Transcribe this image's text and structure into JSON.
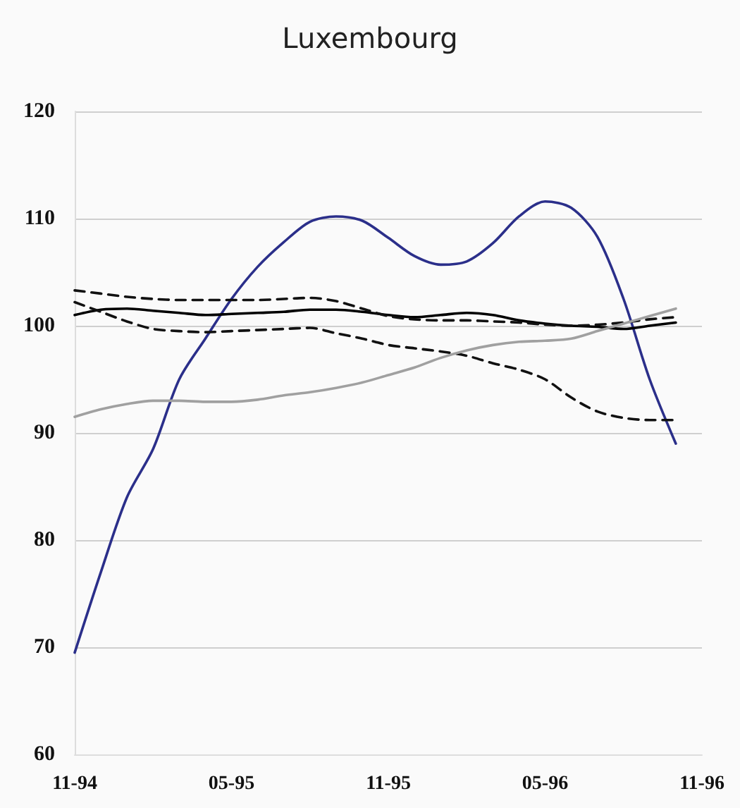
{
  "chart_data": {
    "type": "line",
    "title": "Luxembourg",
    "categories": [
      "11-94",
      null,
      null,
      null,
      null,
      null,
      "05-95",
      null,
      null,
      null,
      null,
      null,
      "11-95",
      null,
      null,
      null,
      null,
      null,
      "05-96",
      null,
      null,
      null,
      null,
      null,
      "11-96"
    ],
    "series": [
      {
        "color": "#2b2f8a",
        "line_style": "solid",
        "values": [
          69.5,
          77,
          84,
          88.5,
          95,
          98.8,
          102.5,
          105.5,
          107.8,
          109.7,
          110.2,
          109.8,
          108.2,
          106.5,
          105.7,
          106,
          107.7,
          110.2,
          111.6,
          111,
          108.3,
          102.5,
          95,
          89,
          null
        ]
      },
      {
        "color": "#000000",
        "line_style": "solid",
        "values": [
          101,
          101.5,
          101.6,
          101.4,
          101.2,
          101,
          101.1,
          101.2,
          101.3,
          101.5,
          101.5,
          101.3,
          101,
          100.8,
          101,
          101.2,
          101,
          100.5,
          100.2,
          100,
          99.9,
          99.7,
          100,
          100.3,
          null
        ]
      },
      {
        "color": "#111111",
        "line_style": "dashed",
        "values": [
          103.3,
          103,
          102.7,
          102.5,
          102.4,
          102.4,
          102.4,
          102.4,
          102.5,
          102.6,
          102.3,
          101.6,
          100.9,
          100.6,
          100.5,
          100.5,
          100.4,
          100.3,
          100.1,
          100,
          100.1,
          100.3,
          100.6,
          100.8,
          null
        ]
      },
      {
        "color": "#111111",
        "line_style": "dashed",
        "values": [
          102.2,
          101.3,
          100.4,
          99.7,
          99.5,
          99.4,
          99.5,
          99.6,
          99.7,
          99.8,
          99.3,
          98.8,
          98.2,
          97.9,
          97.6,
          97.2,
          96.5,
          95.9,
          95,
          93.3,
          92,
          91.4,
          91.2,
          91.2,
          null
        ]
      },
      {
        "color": "#a0a0a0",
        "line_style": "solid",
        "values": [
          91.5,
          92.2,
          92.7,
          93,
          93,
          92.9,
          92.9,
          93.1,
          93.5,
          93.8,
          94.2,
          94.7,
          95.4,
          96.1,
          97,
          97.7,
          98.2,
          98.5,
          98.6,
          98.8,
          99.5,
          100.2,
          100.9,
          101.6,
          null
        ]
      }
    ],
    "ylim": [
      60,
      120
    ],
    "yticks": [
      60,
      70,
      80,
      90,
      100,
      110,
      120
    ],
    "grid": "y",
    "marker": "none"
  }
}
